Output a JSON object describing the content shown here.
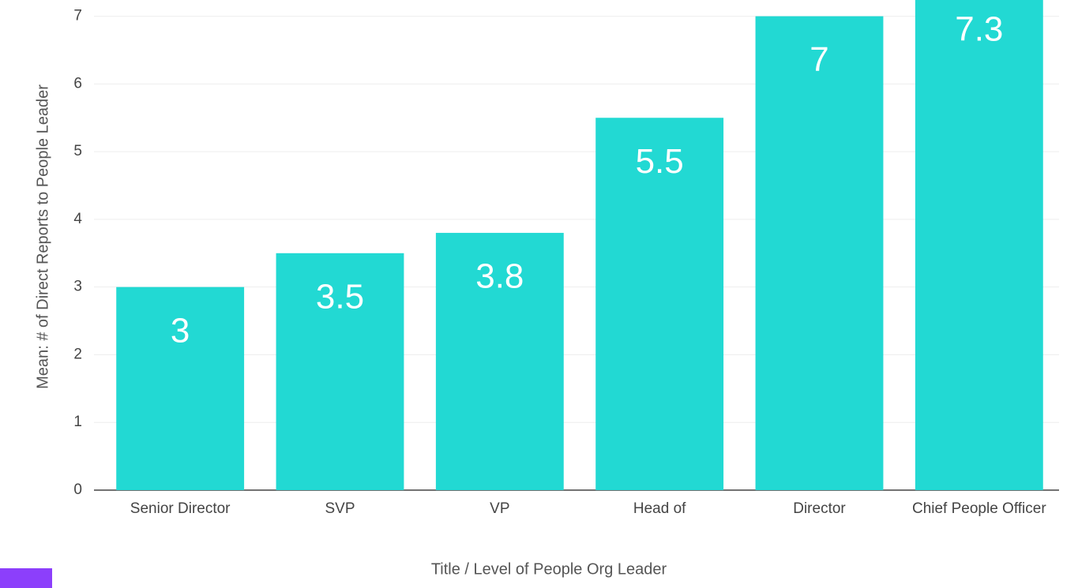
{
  "chart_data": {
    "type": "bar",
    "x_label": "Title / Level of People Org Leader",
    "y_label": "Mean: # of Direct Reports to People Leader",
    "categories": [
      "Senior Director",
      "SVP",
      "VP",
      "Head of",
      "Director",
      "Chief People Officer"
    ],
    "values": [
      3,
      3.5,
      3.8,
      5.5,
      7,
      7.3
    ],
    "color": "#22d9d3",
    "ylim": [
      0,
      7.24
    ],
    "yticks": [
      0,
      1,
      2,
      3,
      4,
      5,
      6,
      7
    ],
    "grid": true
  }
}
